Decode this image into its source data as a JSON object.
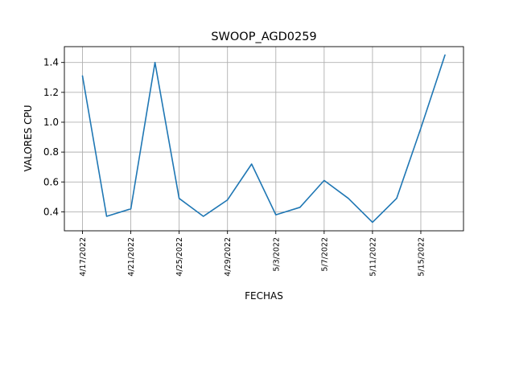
{
  "chart_data": {
    "type": "line",
    "title": "SWOOP_AGD0259",
    "xlabel": "FECHAS",
    "ylabel": "VALORES CPU",
    "grid": true,
    "line_color": "#1f77b4",
    "x": [
      "4/17/2022",
      "4/19/2022",
      "4/21/2022",
      "4/23/2022",
      "4/25/2022",
      "4/27/2022",
      "4/29/2022",
      "5/1/2022",
      "5/3/2022",
      "5/5/2022",
      "5/7/2022",
      "5/9/2022",
      "5/11/2022",
      "5/13/2022",
      "5/15/2022",
      "5/17/2022"
    ],
    "values": [
      1.31,
      0.37,
      0.42,
      1.4,
      0.49,
      0.37,
      0.48,
      0.72,
      0.38,
      0.43,
      0.61,
      0.49,
      0.33,
      0.49,
      0.96,
      1.45
    ],
    "xticks": [
      "4/17/2022",
      "4/21/2022",
      "4/25/2022",
      "4/29/2022",
      "5/3/2022",
      "5/7/2022",
      "5/11/2022",
      "5/15/2022"
    ],
    "yticks": [
      "0.4",
      "0.6",
      "0.8",
      "1.0",
      "1.2",
      "1.4"
    ],
    "ylim": [
      0.273,
      1.506
    ]
  }
}
